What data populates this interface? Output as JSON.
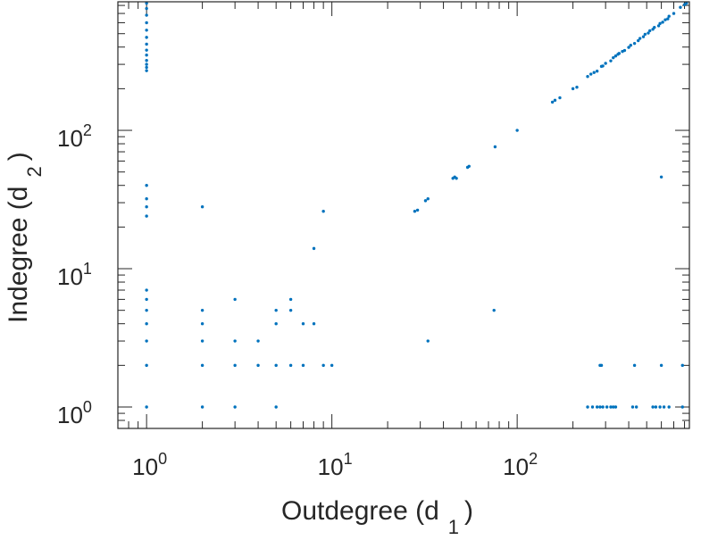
{
  "chart_data": {
    "type": "scatter",
    "title": "",
    "xlabel": "Outdegree (d",
    "xlabel_subscript": "1",
    "xlabel_close": ")",
    "ylabel": "Indegree (d",
    "ylabel_subscript": "2",
    "ylabel_close": ")",
    "xscale": "log",
    "yscale": "log",
    "xlim": [
      0.7,
      850
    ],
    "ylim": [
      0.7,
      850
    ],
    "xticks": [
      1,
      10,
      100
    ],
    "yticks": [
      1,
      10,
      100
    ],
    "x_tick_labels": [
      {
        "base": "10",
        "exp": "0"
      },
      {
        "base": "10",
        "exp": "1"
      },
      {
        "base": "10",
        "exp": "2"
      }
    ],
    "y_tick_labels": [
      {
        "base": "10",
        "exp": "0"
      },
      {
        "base": "10",
        "exp": "1"
      },
      {
        "base": "10",
        "exp": "2"
      }
    ],
    "grid": false,
    "box": true,
    "marker_color": "#0072bd",
    "axis_color": "#262626",
    "points": [
      [
        1,
        1
      ],
      [
        1,
        2
      ],
      [
        1,
        3
      ],
      [
        1,
        4
      ],
      [
        1,
        5
      ],
      [
        1,
        6
      ],
      [
        1,
        7
      ],
      [
        1,
        24
      ],
      [
        1,
        28
      ],
      [
        1,
        32
      ],
      [
        1,
        40
      ],
      [
        1,
        270
      ],
      [
        1,
        285
      ],
      [
        1,
        300
      ],
      [
        1,
        320
      ],
      [
        1,
        350
      ],
      [
        1,
        380
      ],
      [
        1,
        420
      ],
      [
        1,
        470
      ],
      [
        1,
        530
      ],
      [
        1,
        600
      ],
      [
        1,
        680
      ],
      [
        1,
        760
      ],
      [
        1,
        830
      ],
      [
        2,
        1
      ],
      [
        2,
        2
      ],
      [
        2,
        3
      ],
      [
        2,
        4
      ],
      [
        2,
        5
      ],
      [
        2,
        28
      ],
      [
        3,
        1
      ],
      [
        3,
        2
      ],
      [
        3,
        3
      ],
      [
        3,
        6
      ],
      [
        4,
        2
      ],
      [
        4,
        3
      ],
      [
        5,
        1
      ],
      [
        5,
        2
      ],
      [
        5,
        4
      ],
      [
        5,
        5
      ],
      [
        6,
        2
      ],
      [
        6,
        5
      ],
      [
        6,
        6
      ],
      [
        7,
        2
      ],
      [
        7,
        4
      ],
      [
        8,
        4
      ],
      [
        8,
        14
      ],
      [
        9,
        2
      ],
      [
        9,
        26
      ],
      [
        10,
        2
      ],
      [
        28,
        26
      ],
      [
        29,
        26.5
      ],
      [
        32,
        31
      ],
      [
        33,
        3
      ],
      [
        33,
        32
      ],
      [
        45,
        45
      ],
      [
        46,
        46
      ],
      [
        47,
        45
      ],
      [
        54,
        54
      ],
      [
        55,
        55
      ],
      [
        75,
        5
      ],
      [
        76,
        76
      ],
      [
        100,
        100
      ],
      [
        155,
        160
      ],
      [
        160,
        165
      ],
      [
        170,
        172
      ],
      [
        200,
        200
      ],
      [
        210,
        205
      ],
      [
        240,
        245
      ],
      [
        250,
        255
      ],
      [
        260,
        262
      ],
      [
        270,
        268
      ],
      [
        285,
        290
      ],
      [
        290,
        292
      ],
      [
        300,
        305
      ],
      [
        320,
        318
      ],
      [
        330,
        335
      ],
      [
        340,
        345
      ],
      [
        350,
        355
      ],
      [
        355,
        360
      ],
      [
        370,
        372
      ],
      [
        380,
        378
      ],
      [
        400,
        398
      ],
      [
        410,
        412
      ],
      [
        430,
        425
      ],
      [
        450,
        445
      ],
      [
        460,
        462
      ],
      [
        480,
        475
      ],
      [
        490,
        495
      ],
      [
        510,
        505
      ],
      [
        520,
        525
      ],
      [
        540,
        538
      ],
      [
        550,
        555
      ],
      [
        580,
        570
      ],
      [
        590,
        592
      ],
      [
        610,
        605
      ],
      [
        630,
        630
      ],
      [
        650,
        640
      ],
      [
        660,
        668
      ],
      [
        700,
        700
      ],
      [
        760,
        775
      ],
      [
        800,
        810
      ],
      [
        820,
        830
      ],
      [
        240,
        1
      ],
      [
        255,
        1
      ],
      [
        270,
        1
      ],
      [
        280,
        1
      ],
      [
        290,
        1
      ],
      [
        305,
        1
      ],
      [
        320,
        1
      ],
      [
        330,
        1
      ],
      [
        340,
        1
      ],
      [
        420,
        1
      ],
      [
        440,
        1
      ],
      [
        540,
        1
      ],
      [
        560,
        1
      ],
      [
        590,
        1
      ],
      [
        620,
        1
      ],
      [
        660,
        1
      ],
      [
        780,
        1
      ],
      [
        280,
        2
      ],
      [
        285,
        2
      ],
      [
        430,
        2
      ],
      [
        600,
        2
      ],
      [
        780,
        2
      ],
      [
        600,
        46
      ]
    ]
  }
}
